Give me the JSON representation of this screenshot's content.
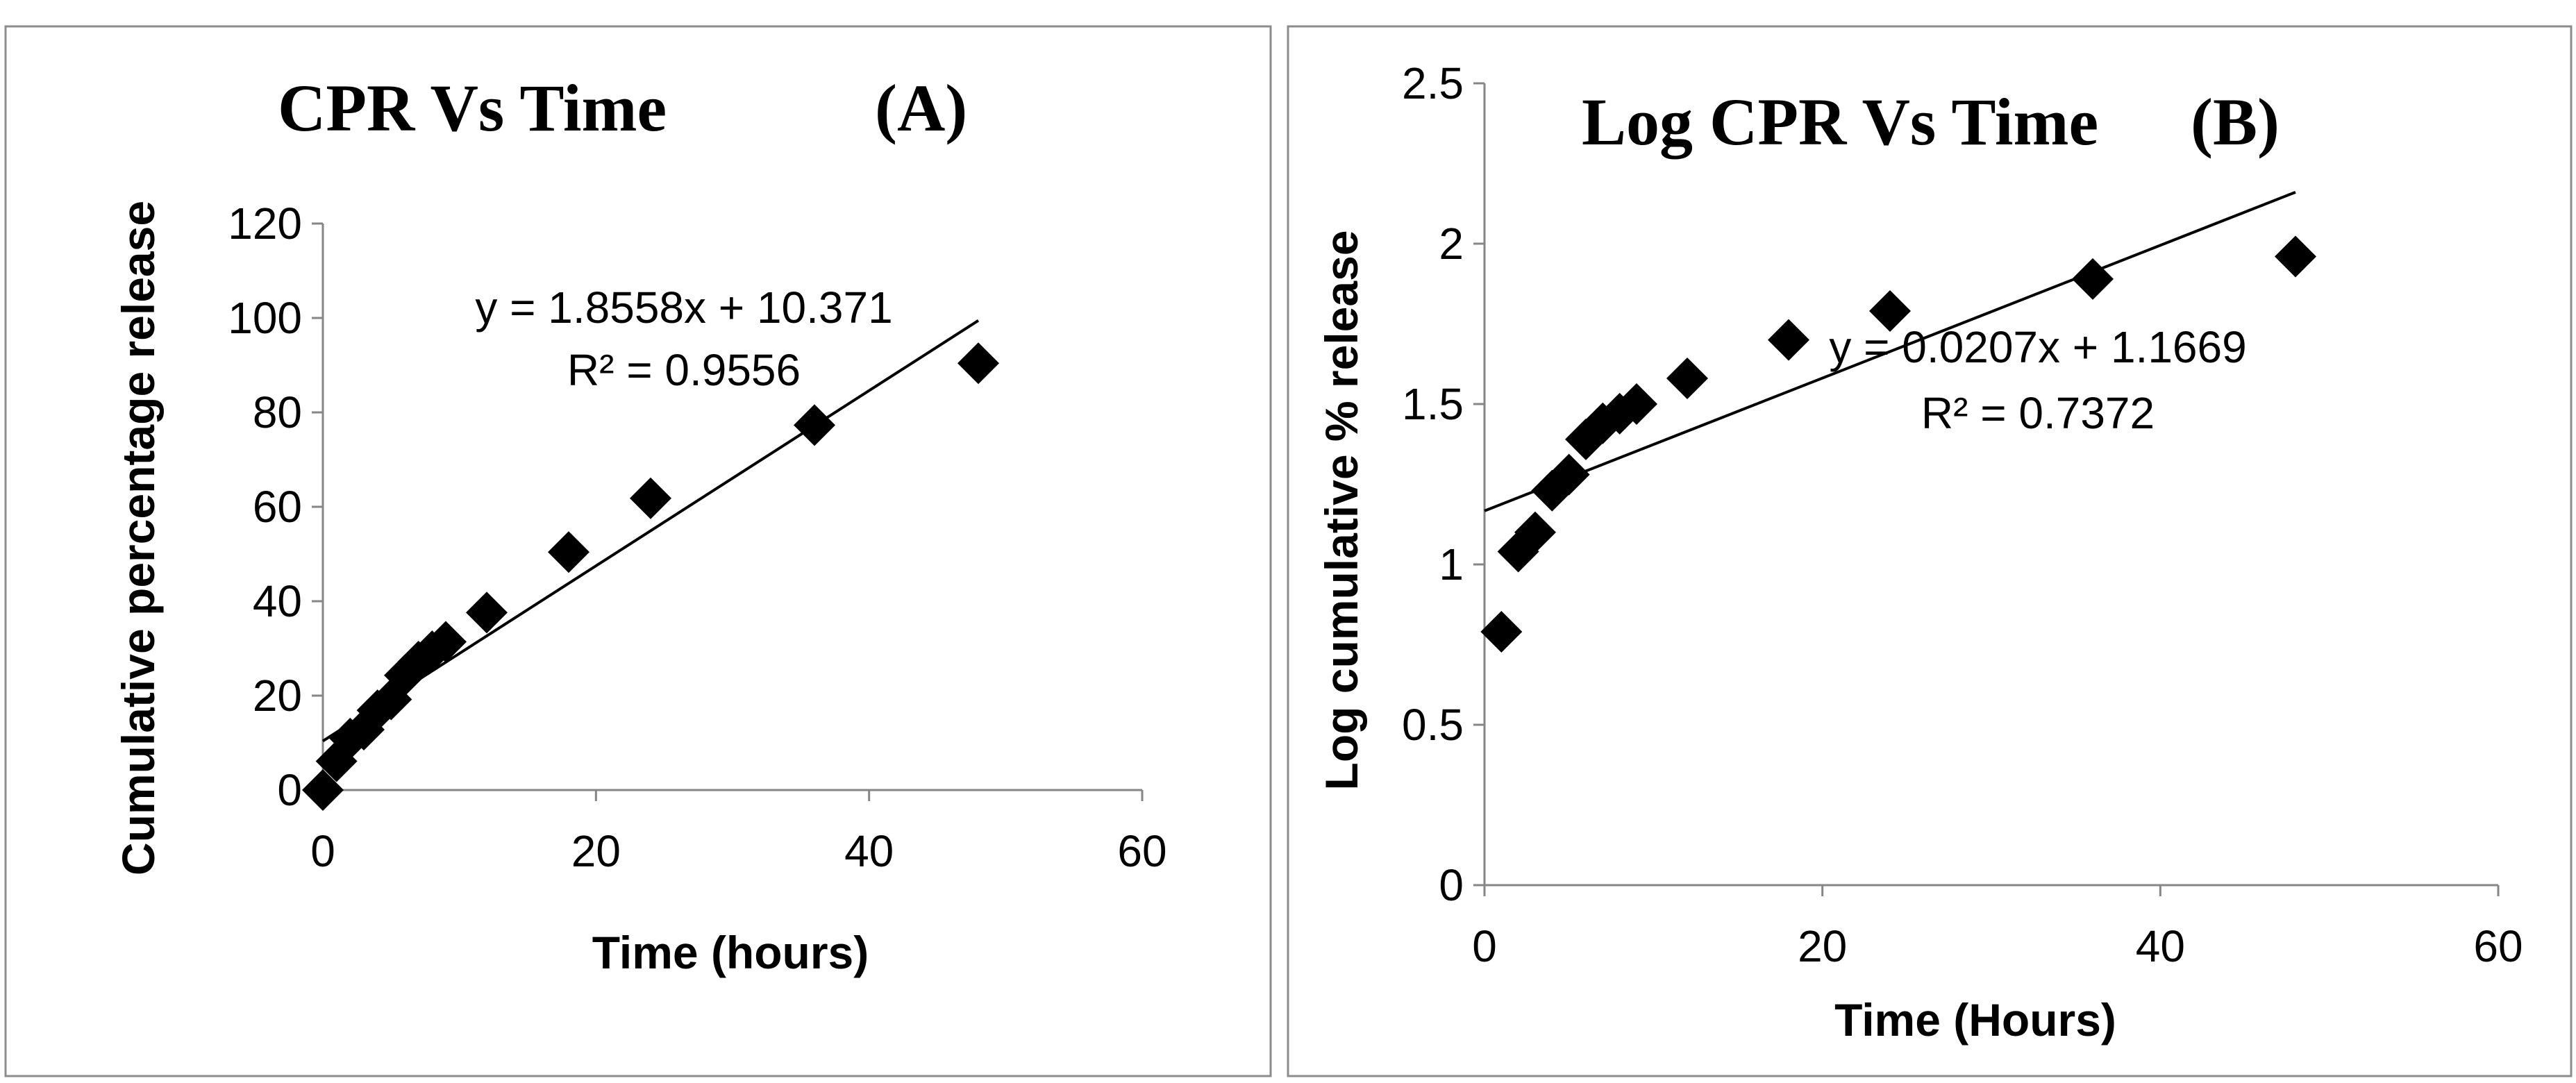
{
  "chart_data": [
    {
      "type": "scatter",
      "title": "CPR Vs Time",
      "panel_label": "(A)",
      "xlabel": "Time (hours)",
      "ylabel": "Cumulative percentage release",
      "xlim": [
        0,
        60
      ],
      "ylim": [
        0,
        120
      ],
      "xticks": [
        0,
        20,
        40,
        60
      ],
      "yticks": [
        0,
        20,
        40,
        60,
        80,
        100,
        120
      ],
      "grid": false,
      "points": [
        {
          "x": 0,
          "y": 0
        },
        {
          "x": 1,
          "y": 6.1
        },
        {
          "x": 2,
          "y": 10.9
        },
        {
          "x": 3,
          "y": 12.8
        },
        {
          "x": 4,
          "y": 16.9
        },
        {
          "x": 5,
          "y": 19.2
        },
        {
          "x": 6,
          "y": 24.3
        },
        {
          "x": 7,
          "y": 27.2
        },
        {
          "x": 8,
          "y": 29.4
        },
        {
          "x": 9,
          "y": 31.4
        },
        {
          "x": 12,
          "y": 37.6
        },
        {
          "x": 18,
          "y": 50.4
        },
        {
          "x": 24,
          "y": 61.8
        },
        {
          "x": 36,
          "y": 77.3
        },
        {
          "x": 48,
          "y": 90.4
        }
      ],
      "trendline": {
        "slope": 1.8558,
        "intercept": 10.371,
        "x_start": 0,
        "x_end": 48
      },
      "equation": "y = 1.8558x + 10.371",
      "r_squared": "R² = 0.9556"
    },
    {
      "type": "scatter",
      "title": "Log CPR Vs Time",
      "panel_label": "(B)",
      "xlabel": "Time (Hours)",
      "ylabel": "Log cumulative % release",
      "xlim": [
        0,
        60
      ],
      "ylim": [
        0,
        2.5
      ],
      "xticks": [
        0,
        20,
        40,
        60
      ],
      "yticks": [
        0,
        0.5,
        1,
        1.5,
        2,
        2.5
      ],
      "grid": false,
      "points": [
        {
          "x": 1,
          "y": 0.79
        },
        {
          "x": 2,
          "y": 1.04
        },
        {
          "x": 3,
          "y": 1.1
        },
        {
          "x": 4,
          "y": 1.23
        },
        {
          "x": 5,
          "y": 1.28
        },
        {
          "x": 6,
          "y": 1.39
        },
        {
          "x": 7,
          "y": 1.44
        },
        {
          "x": 8,
          "y": 1.47
        },
        {
          "x": 9,
          "y": 1.5
        },
        {
          "x": 12,
          "y": 1.58
        },
        {
          "x": 18,
          "y": 1.7
        },
        {
          "x": 24,
          "y": 1.79
        },
        {
          "x": 36,
          "y": 1.89
        },
        {
          "x": 48,
          "y": 1.96
        }
      ],
      "trendline": {
        "slope": 0.0207,
        "intercept": 1.1669,
        "x_start": 0,
        "x_end": 48
      },
      "equation": "y = 0.0207x + 1.1669",
      "r_squared": "R² = 0.7372"
    }
  ]
}
